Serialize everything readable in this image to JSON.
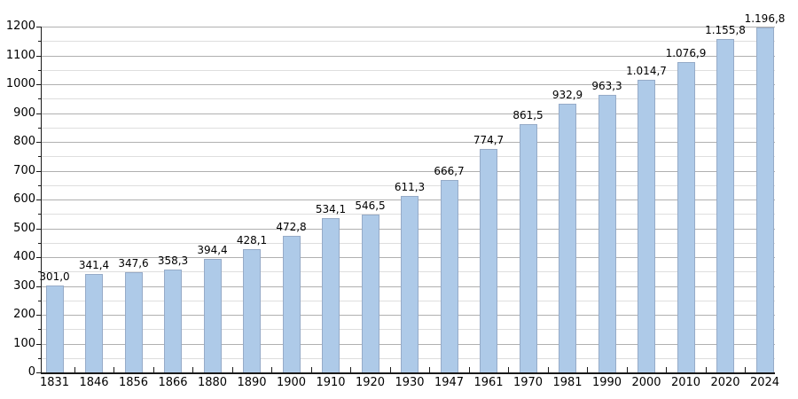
{
  "chart_data": {
    "type": "bar",
    "title": "",
    "xlabel": "",
    "ylabel": "",
    "categories": [
      "1831",
      "1846",
      "1856",
      "1866",
      "1880",
      "1890",
      "1900",
      "1910",
      "1920",
      "1930",
      "1947",
      "1961",
      "1970",
      "1981",
      "1990",
      "2000",
      "2010",
      "2020",
      "2024"
    ],
    "values": [
      301.0,
      341.4,
      347.6,
      358.3,
      394.4,
      428.1,
      472.8,
      534.1,
      546.5,
      611.3,
      666.7,
      774.7,
      861.5,
      932.9,
      963.3,
      1014.7,
      1076.9,
      1155.8,
      1196.8
    ],
    "value_labels": [
      "301,0",
      "341,4",
      "347,6",
      "358,3",
      "394,4",
      "428,1",
      "472,8",
      "534,1",
      "546,5",
      "611,3",
      "666,7",
      "774,7",
      "861,5",
      "932,9",
      "963,3",
      "1.014,7",
      "1.076,9",
      "1.155,8",
      "1.196,8"
    ],
    "y_tick_labels": [
      "0",
      "100",
      "200",
      "300",
      "400",
      "500",
      "600",
      "700",
      "800",
      "900",
      "1000",
      "1100",
      "1200"
    ],
    "ylim": [
      0,
      1200
    ],
    "y_major_step": 100,
    "y_minor_step": 50,
    "grid": true,
    "legend_position": "none",
    "colors": {
      "bar_fill": "#aecae8",
      "bar_border": "#96abc8",
      "grid_major": "#b0b0b0",
      "grid_minor": "#dedede",
      "axis": "#1a1a1a",
      "text": "#000000",
      "background": "#ffffff"
    }
  }
}
